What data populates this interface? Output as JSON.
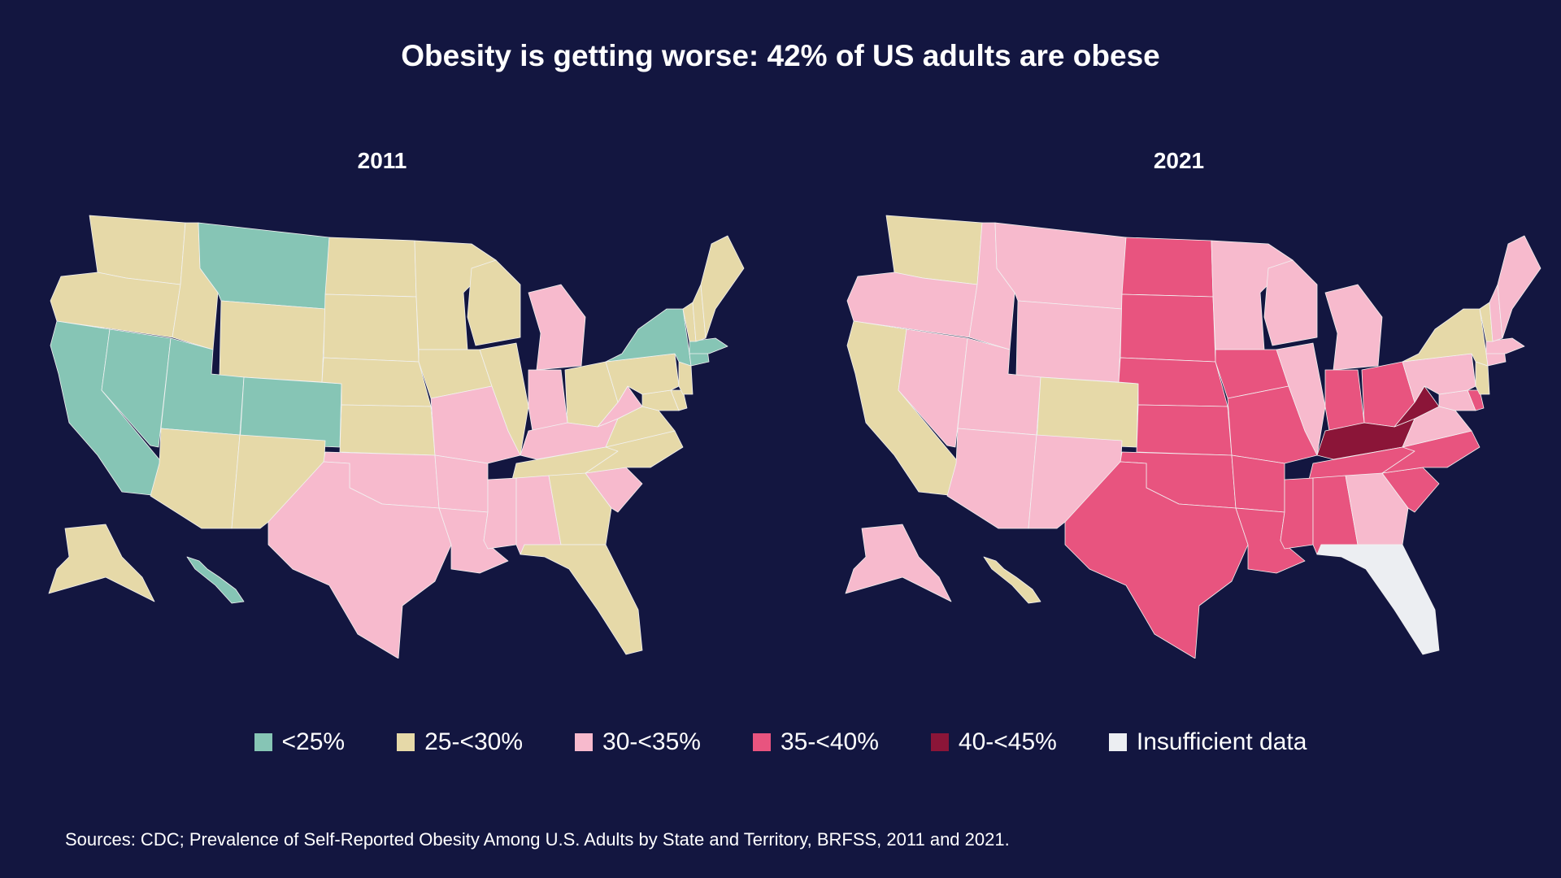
{
  "title": "Obesity is getting worse: 42% of US adults are obese",
  "maps": [
    {
      "year": "2011",
      "states": {
        "WA": "c2",
        "OR": "c2",
        "ID": "c2",
        "MT": "c1",
        "WY": "c2",
        "CA": "c1",
        "NV": "c1",
        "UT": "c1",
        "CO": "c1",
        "AZ": "c2",
        "NM": "c2",
        "ND": "c2",
        "SD": "c2",
        "NE": "c2",
        "KS": "c2",
        "OK": "c3",
        "TX": "c3",
        "MN": "c2",
        "IA": "c2",
        "MO": "c3",
        "AR": "c3",
        "LA": "c3",
        "WI": "c2",
        "IL": "c2",
        "MI": "c3",
        "IN": "c3",
        "OH": "c2",
        "KY": "c3",
        "TN": "c2",
        "MS": "c3",
        "AL": "c3",
        "GA": "c2",
        "FL": "c2",
        "SC": "c3",
        "NC": "c2",
        "VA": "c2",
        "WV": "c3",
        "PA": "c2",
        "NY": "c1",
        "VT": "c2",
        "NH": "c2",
        "ME": "c2",
        "MA": "c1",
        "CT": "c1",
        "NJ": "c2",
        "DE": "c2",
        "MD": "c2",
        "AK": "c2",
        "HI": "c1"
      }
    },
    {
      "year": "2021",
      "states": {
        "WA": "c2",
        "OR": "c3",
        "ID": "c3",
        "MT": "c3",
        "WY": "c3",
        "CA": "c2",
        "NV": "c3",
        "UT": "c3",
        "CO": "c2",
        "AZ": "c3",
        "NM": "c3",
        "ND": "c4",
        "SD": "c4",
        "NE": "c4",
        "KS": "c4",
        "OK": "c4",
        "TX": "c4",
        "MN": "c3",
        "IA": "c4",
        "MO": "c4",
        "AR": "c4",
        "LA": "c4",
        "WI": "c3",
        "IL": "c3",
        "MI": "c3",
        "IN": "c4",
        "OH": "c4",
        "KY": "c5",
        "TN": "c4",
        "MS": "c4",
        "AL": "c4",
        "GA": "c3",
        "FL": "c6",
        "SC": "c4",
        "NC": "c4",
        "VA": "c3",
        "WV": "c5",
        "PA": "c3",
        "NY": "c2",
        "VT": "c2",
        "NH": "c3",
        "ME": "c3",
        "MA": "c3",
        "CT": "c3",
        "NJ": "c2",
        "DE": "c4",
        "MD": "c3",
        "AK": "c3",
        "HI": "c2"
      }
    }
  ],
  "legend": [
    {
      "key": "c1",
      "label": "<25%",
      "color": "#86c5b5"
    },
    {
      "key": "c2",
      "label": "25-<30%",
      "color": "#e6d9a8"
    },
    {
      "key": "c3",
      "label": "30-<35%",
      "color": "#f7bacd"
    },
    {
      "key": "c4",
      "label": "35-<40%",
      "color": "#e8547f"
    },
    {
      "key": "c5",
      "label": "40-<45%",
      "color": "#8b1538"
    },
    {
      "key": "c6",
      "label": "Insufficient data",
      "color": "#eceef2"
    }
  ],
  "source": "Sources: CDC; Prevalence of Self-Reported Obesity Among U.S. Adults by State and Territory, BRFSS, 2011 and 2021."
}
